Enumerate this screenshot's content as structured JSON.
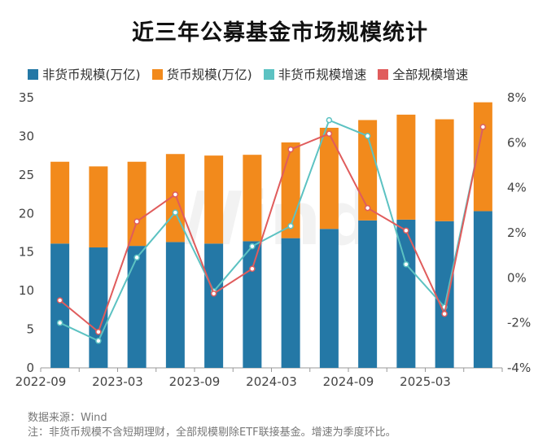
{
  "title": "近三年公募基金市场规模统计",
  "source": "数据来源：Wind",
  "note": "注：非货币规模不含短期理财，全部规模剔除ETF联接基金。增速为季度环比。",
  "watermark": "Wind",
  "colors": {
    "noncurrency": "#2478a6",
    "currency": "#f28a1c",
    "noncurrency_growth": "#5cc2c2",
    "total_growth": "#e05c5c"
  },
  "chart_data": {
    "type": "bar",
    "stacked": true,
    "categories": [
      "2022-09",
      "2022-12",
      "2023-03",
      "2023-06",
      "2023-09",
      "2023-12",
      "2024-03",
      "2024-06",
      "2024-09",
      "2024-12",
      "2025-03",
      "2025-06"
    ],
    "x_tick_labels": [
      "2022-09",
      "",
      "2023-03",
      "",
      "2023-09",
      "",
      "2024-03",
      "",
      "2024-09",
      "",
      "2025-03",
      ""
    ],
    "series": [
      {
        "name": "非货币规模(万亿)",
        "kind": "bar",
        "axis": "left",
        "values": [
          16.1,
          15.6,
          15.8,
          16.3,
          16.1,
          16.4,
          16.8,
          18.0,
          19.1,
          19.2,
          19.0,
          20.3
        ]
      },
      {
        "name": "货币规模(万亿)",
        "kind": "bar",
        "axis": "left",
        "values": [
          10.6,
          10.5,
          10.9,
          11.4,
          11.4,
          11.2,
          12.4,
          13.1,
          13.0,
          13.6,
          13.2,
          14.1
        ]
      },
      {
        "name": "非货币规模增速",
        "kind": "line",
        "axis": "right",
        "values": [
          -2.0,
          -2.8,
          0.9,
          2.9,
          -0.6,
          1.4,
          2.3,
          7.0,
          6.3,
          0.6,
          -1.3,
          6.7
        ]
      },
      {
        "name": "全部规模增速",
        "kind": "line",
        "axis": "right",
        "values": [
          -1.0,
          -2.4,
          2.5,
          3.7,
          -0.7,
          0.4,
          5.7,
          6.4,
          3.1,
          2.1,
          -1.6,
          6.7
        ]
      }
    ],
    "y_left": {
      "min": 0,
      "max": 35,
      "ticks": [
        0,
        5,
        10,
        15,
        20,
        25,
        30,
        35
      ]
    },
    "y_right": {
      "min": -4,
      "max": 8,
      "ticks": [
        "-4%",
        "-2%",
        "0%",
        "2%",
        "4%",
        "6%",
        "8%"
      ],
      "tick_values": [
        -4,
        -2,
        0,
        2,
        4,
        6,
        8
      ]
    },
    "legend_position": "top",
    "grid": false
  }
}
